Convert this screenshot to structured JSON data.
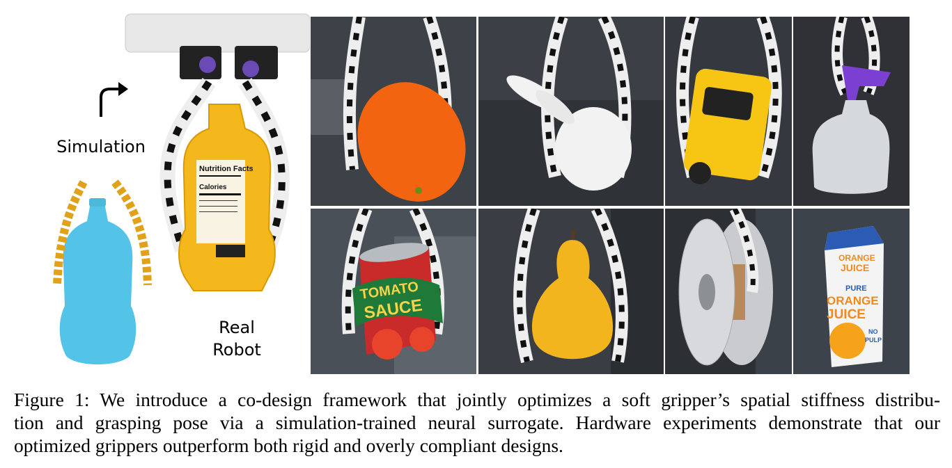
{
  "figure": {
    "labels": {
      "simulation": "Simulation",
      "real_robot_line1": "Real",
      "real_robot_line2": "Robot"
    },
    "product_text": {
      "nutrition_facts": "Nutrition Facts",
      "calories": "Calories",
      "can_line1": "TOMATO",
      "can_line2": "SAUCE",
      "carton_top": "ORANGE",
      "carton_top2": "JUICE",
      "carton_pure": "PURE",
      "carton_main1": "ORANGE",
      "carton_main2": "JUICE",
      "carton_pulp1": "NO",
      "carton_pulp2": "PULP"
    },
    "panels": [
      {
        "name": "mango",
        "row": 1,
        "col": 1
      },
      {
        "name": "bunny",
        "row": 1,
        "col": 2
      },
      {
        "name": "toy-car",
        "row": 1,
        "col": 3
      },
      {
        "name": "spray-bottle",
        "row": 1,
        "col": 4
      },
      {
        "name": "tomato-sauce-can",
        "row": 2,
        "col": 1
      },
      {
        "name": "pear",
        "row": 2,
        "col": 2
      },
      {
        "name": "filament-spool",
        "row": 2,
        "col": 3
      },
      {
        "name": "orange-juice-carton",
        "row": 2,
        "col": 4
      }
    ]
  },
  "caption": {
    "line1": "Figure 1: We introduce a co-design framework that jointly optimizes a soft gripper’s spatial stiffness distribu-",
    "line2": "tion and grasping pose via a simulation-trained neural surrogate. Hardware experiments demonstrate that our",
    "line3": "optimized grippers outperform both rigid and overly compliant designs."
  }
}
